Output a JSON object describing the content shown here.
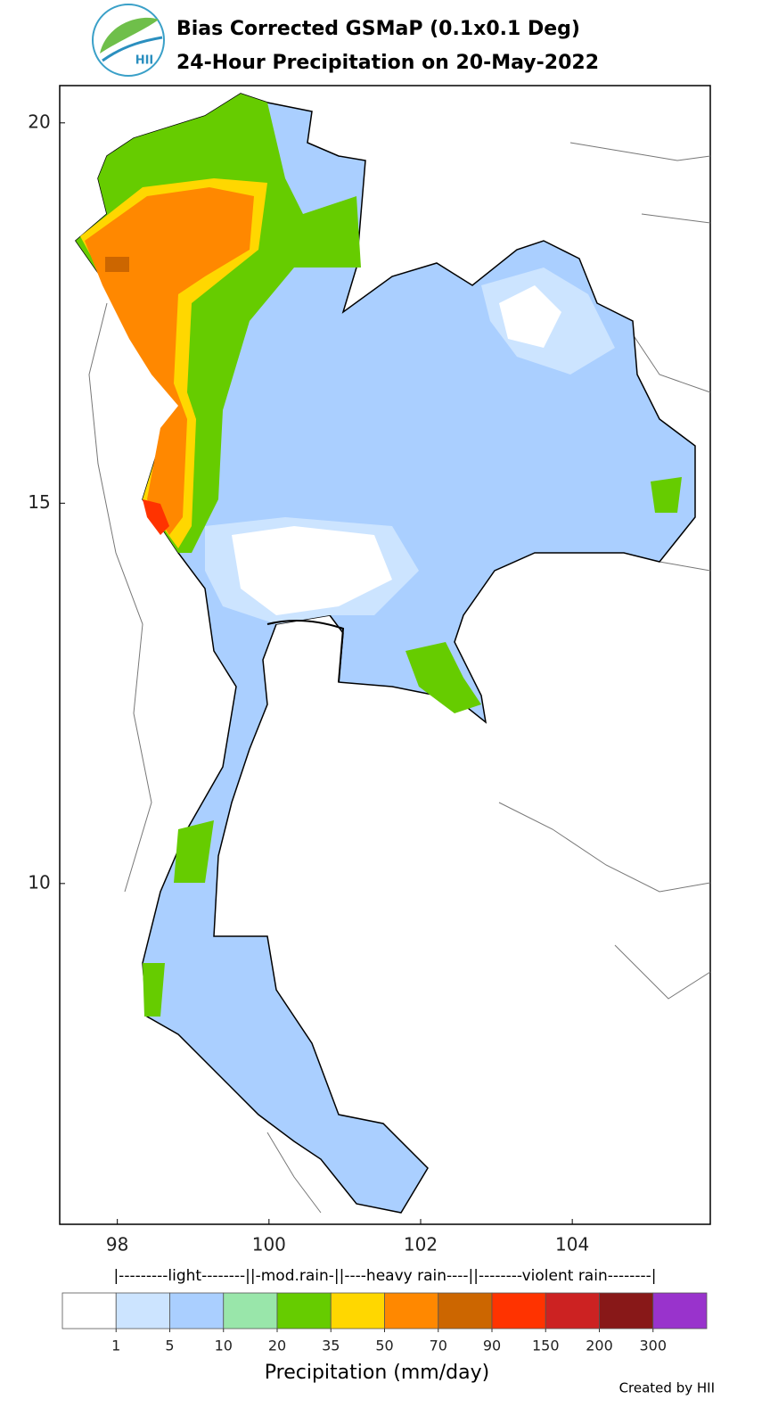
{
  "header": {
    "logo_text": "HII",
    "title_line1": "Bias Corrected GSMaP (0.1x0.1 Deg)",
    "title_line2": "24-Hour Precipitation on 20-May-2022"
  },
  "map": {
    "xlim": [
      97.24,
      105.82
    ],
    "ylim": [
      5.52,
      20.49
    ],
    "xticks": [
      98,
      100,
      102,
      104
    ],
    "yticks": [
      20,
      15,
      10
    ]
  },
  "colorbar": {
    "category_labels": "|---------light--------||-mod.rain-||----heavy rain----||--------violent rain--------|",
    "colors": [
      "#ffffff",
      "#cce4ff",
      "#aacfff",
      "#99e6aa",
      "#66cc00",
      "#ffd700",
      "#ff8800",
      "#cc6600",
      "#ff3300",
      "#cc2222",
      "#881818",
      "#9933cc"
    ],
    "ticks": [
      1,
      5,
      10,
      20,
      35,
      50,
      70,
      90,
      150,
      200,
      300
    ],
    "label": "Precipitation (mm/day)"
  },
  "footer": {
    "credit": "Created by HII"
  }
}
